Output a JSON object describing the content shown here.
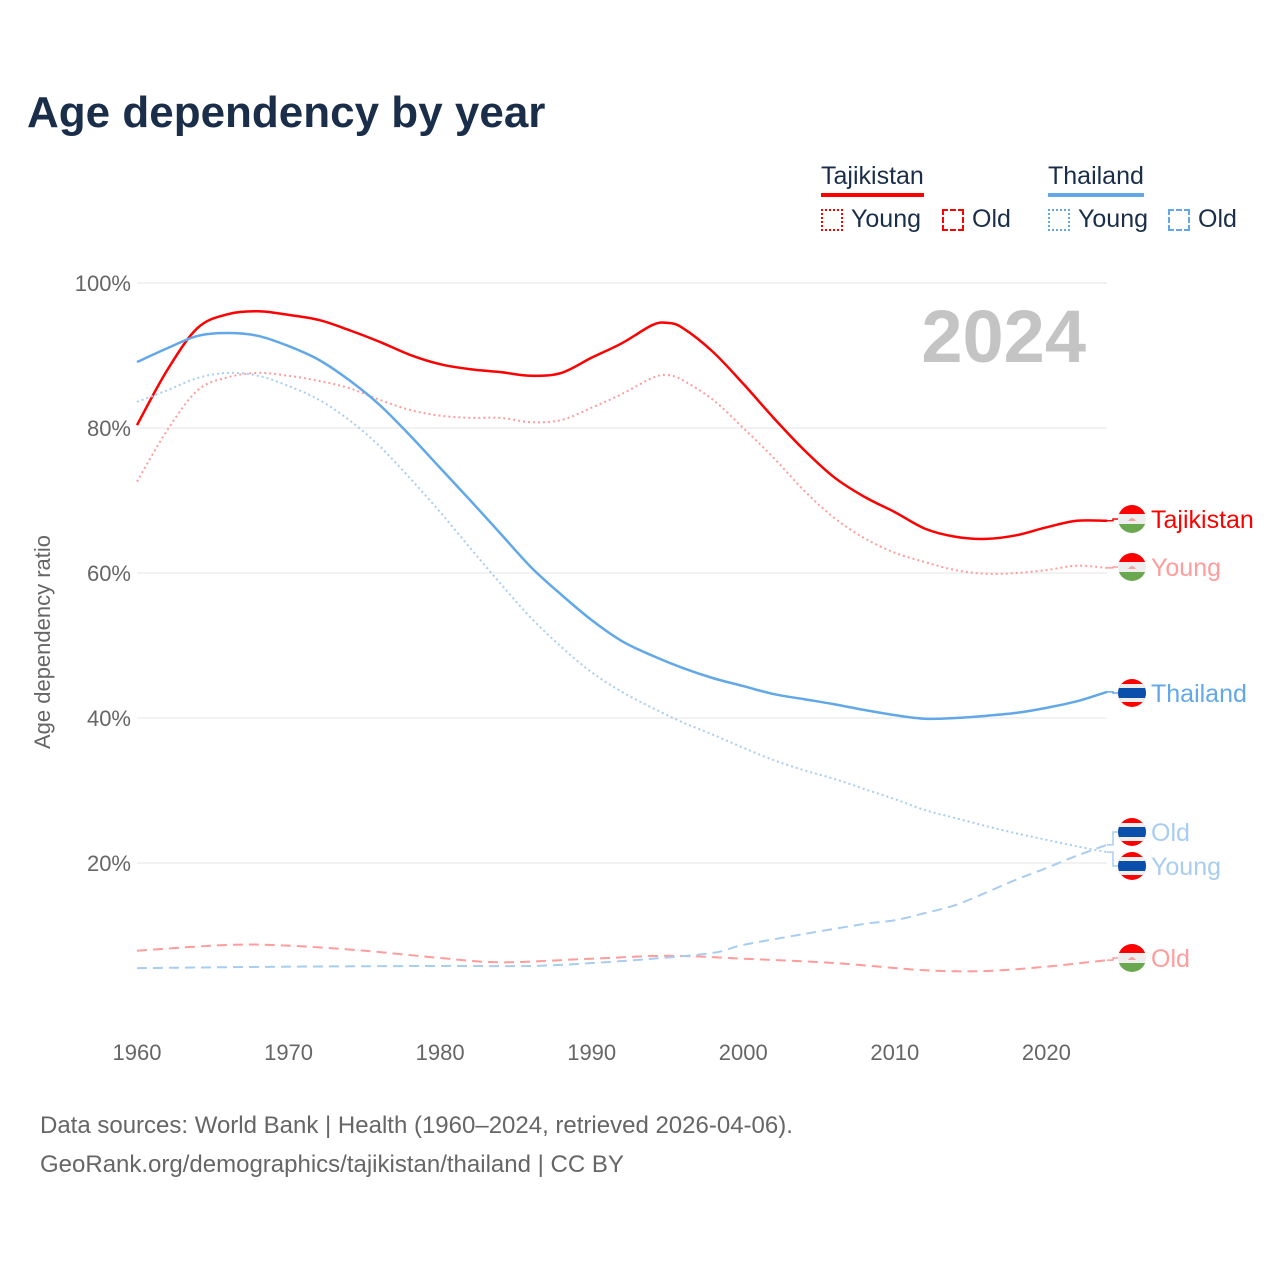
{
  "title": "Age dependency by year",
  "legend": {
    "groups": [
      {
        "name": "Tajikistan",
        "color": "#ff0000",
        "items": [
          "Young",
          "Old"
        ]
      },
      {
        "name": "Thailand",
        "color": "#62a8e8",
        "items": [
          "Young",
          "Old"
        ]
      }
    ]
  },
  "year_label": "2024",
  "footer": {
    "line1": "Data sources: World Bank | Health (1960–2024, retrieved 2026-04-06).",
    "line2": "GeoRank.org/demographics/tajikistan/thailand | CC BY"
  },
  "chart_data": {
    "type": "line",
    "title": "Age dependency by year",
    "xlabel": "",
    "ylabel": "Age dependency ratio",
    "xlim": [
      1960,
      2024
    ],
    "ylim": [
      0,
      100
    ],
    "x_ticks": [
      "1960",
      "1970",
      "1980",
      "1990",
      "2000",
      "2010",
      "2020"
    ],
    "y_ticks": [
      "20%",
      "40%",
      "60%",
      "80%",
      "100%"
    ],
    "grid": true,
    "series": [
      {
        "name": "Tajikistan",
        "end_label": "Tajikistan",
        "country": "tajikistan",
        "color": "#ff0000",
        "style": "solid",
        "x": [
          1960,
          1962,
          1964,
          1966,
          1968,
          1970,
          1972,
          1974,
          1976,
          1978,
          1980,
          1982,
          1984,
          1986,
          1988,
          1990,
          1992,
          1994,
          1995,
          1996,
          1998,
          2000,
          2002,
          2004,
          2006,
          2008,
          2010,
          2012,
          2014,
          2016,
          2018,
          2020,
          2022,
          2024
        ],
        "y": [
          80.4,
          88,
          93.8,
          95.7,
          96.1,
          95.6,
          94.9,
          93.5,
          91.9,
          90.1,
          88.8,
          88.1,
          87.7,
          87.2,
          87.6,
          89.7,
          91.7,
          94.2,
          94.5,
          93.8,
          90.5,
          86.1,
          81.4,
          77,
          73.2,
          70.5,
          68.4,
          66.1,
          65,
          64.7,
          65.2,
          66.3,
          67.2,
          67.2
        ]
      },
      {
        "name": "Tajikistan Young",
        "end_label": "Young",
        "country": "tajikistan",
        "color": "#ff9c9c",
        "style": "dotted",
        "x": [
          1960,
          1962,
          1964,
          1966,
          1968,
          1970,
          1972,
          1974,
          1976,
          1978,
          1980,
          1982,
          1984,
          1986,
          1988,
          1990,
          1992,
          1994,
          1995,
          1996,
          1998,
          2000,
          2002,
          2004,
          2006,
          2008,
          2010,
          2012,
          2014,
          2016,
          2018,
          2020,
          2022,
          2024
        ],
        "y": [
          72.6,
          79.7,
          85.2,
          87,
          87.6,
          87.2,
          86.5,
          85.5,
          83.9,
          82.5,
          81.7,
          81.4,
          81.4,
          80.8,
          81.1,
          82.8,
          84.7,
          86.9,
          87.3,
          86.6,
          83.9,
          80,
          75.9,
          71.4,
          67.6,
          64.8,
          62.8,
          61.5,
          60.4,
          59.9,
          60,
          60.4,
          61,
          60.7
        ]
      },
      {
        "name": "Tajikistan Old",
        "end_label": "Old",
        "country": "tajikistan",
        "color": "#ff9c9c",
        "style": "dashed",
        "x": [
          1960,
          1966,
          1970,
          1975,
          1980,
          1984,
          1990,
          1995,
          2000,
          2006,
          2012,
          2016,
          2020,
          2024
        ],
        "y": [
          7.9,
          8.7,
          8.6,
          7.9,
          6.9,
          6.3,
          6.8,
          7.2,
          6.8,
          6.2,
          5.2,
          5.1,
          5.7,
          6.6
        ]
      },
      {
        "name": "Thailand",
        "end_label": "Thailand",
        "country": "thailand",
        "color": "#62a8e8",
        "style": "solid",
        "x": [
          1960,
          1962,
          1964,
          1966,
          1968,
          1970,
          1972,
          1974,
          1976,
          1978,
          1980,
          1982,
          1984,
          1986,
          1988,
          1990,
          1992,
          1994,
          1996,
          1998,
          2000,
          2002,
          2004,
          2006,
          2008,
          2010,
          2012,
          2014,
          2016,
          2018,
          2020,
          2022,
          2024
        ],
        "y": [
          89.1,
          91,
          92.7,
          93.1,
          92.7,
          91.3,
          89.4,
          86.6,
          83.2,
          79,
          74.5,
          70,
          65.4,
          60.8,
          57,
          53.5,
          50.6,
          48.6,
          46.9,
          45.5,
          44.4,
          43.3,
          42.6,
          41.9,
          41.1,
          40.4,
          39.9,
          40,
          40.3,
          40.7,
          41.4,
          42.3,
          43.6
        ]
      },
      {
        "name": "Thailand Young",
        "end_label": "Young",
        "country": "thailand",
        "color": "#a9cdf0",
        "style": "dotted",
        "x": [
          1960,
          1962,
          1964,
          1966,
          1968,
          1970,
          1972,
          1974,
          1976,
          1978,
          1980,
          1982,
          1984,
          1986,
          1988,
          1990,
          1992,
          1994,
          1996,
          1998,
          2000,
          2002,
          2004,
          2006,
          2008,
          2010,
          2012,
          2014,
          2016,
          2018,
          2020,
          2022,
          2024
        ],
        "y": [
          83.6,
          85.2,
          86.9,
          87.6,
          87.2,
          85.8,
          83.9,
          81.1,
          77.5,
          73.1,
          68.4,
          63.4,
          58.5,
          53.8,
          49.8,
          46.3,
          43.6,
          41.4,
          39.4,
          37.7,
          35.9,
          34.2,
          32.8,
          31.6,
          30.2,
          28.8,
          27.3,
          26.2,
          25.1,
          24.1,
          23.2,
          22.3,
          21.5
        ]
      },
      {
        "name": "Thailand Old",
        "end_label": "Old",
        "country": "thailand",
        "color": "#a9cdf0",
        "style": "dashed",
        "x": [
          1960,
          1970,
          1980,
          1986,
          1990,
          1994,
          1998,
          2000,
          2004,
          2008,
          2010,
          2012,
          2014,
          2016,
          2018,
          2020,
          2022,
          2024
        ],
        "y": [
          5.5,
          5.7,
          5.8,
          5.8,
          6.2,
          6.8,
          7.6,
          8.7,
          10.2,
          11.6,
          12.1,
          13.1,
          14.2,
          15.9,
          17.7,
          19.3,
          21,
          22.5
        ]
      }
    ]
  }
}
